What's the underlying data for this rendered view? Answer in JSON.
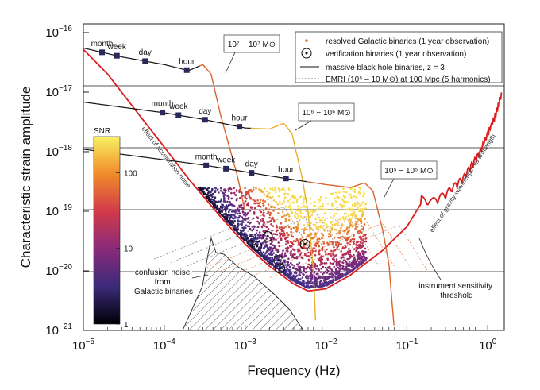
{
  "chart_data": {
    "type": "line",
    "xlabel": "Frequency (Hz)",
    "ylabel": "Characteristic strain amplitude",
    "xscale": "log",
    "yscale": "log",
    "xlim": [
      1e-05,
      1.6
    ],
    "ylim": [
      1e-21,
      1.4e-16
    ],
    "x_ticks": [
      {
        "v": 1e-05,
        "b": "10",
        "e": "−5"
      },
      {
        "v": 0.0001,
        "b": "10",
        "e": "−4"
      },
      {
        "v": 0.001,
        "b": "10",
        "e": "−3"
      },
      {
        "v": 0.01,
        "b": "10",
        "e": "−2"
      },
      {
        "v": 0.1,
        "b": "10",
        "e": "−1"
      },
      {
        "v": 1,
        "b": "10",
        "e": "0"
      }
    ],
    "y_ticks": [
      {
        "v": 1e-16,
        "b": "10",
        "e": "−16"
      },
      {
        "v": 1e-17,
        "b": "10",
        "e": "−17"
      },
      {
        "v": 1e-18,
        "b": "10",
        "e": "−18"
      },
      {
        "v": 1e-19,
        "b": "10",
        "e": "−19"
      },
      {
        "v": 1e-20,
        "b": "10",
        "e": "−20"
      },
      {
        "v": 1e-21,
        "b": "10",
        "e": "−21"
      }
    ],
    "legend": {
      "placement": "top-right",
      "entries": [
        {
          "label": "resolved Galactic binaries (1 year observation)",
          "marker": "dot",
          "color": "#e07020"
        },
        {
          "label": "verification binaries (1 year observation)",
          "marker": "circle-dot",
          "color": "#111111"
        },
        {
          "label": "massive black hole binaries, z = 3",
          "marker": "line",
          "color": "#111111"
        },
        {
          "label": "EMRI (10⁵ – 10 M⊙) at 100 Mpc (5 harmonics)",
          "marker": "dashed",
          "color": "#777777"
        }
      ]
    },
    "colorbar": {
      "label": "SNR",
      "ticks": [
        "100",
        "10",
        "1"
      ],
      "tick_values": [
        100,
        10,
        1
      ],
      "range": [
        1,
        300
      ]
    },
    "sensitivity": {
      "name": "instrument sensitivity threshold",
      "color": "#d81e1e",
      "points": [
        [
          1e-05,
          5.2e-17
        ],
        [
          2e-05,
          2e-17
        ],
        [
          5e-05,
          4e-18
        ],
        [
          0.0001,
          1.2e-18
        ],
        [
          0.0002,
          3.5e-19
        ],
        [
          0.0005,
          8e-20
        ],
        [
          0.001,
          2.8e-20
        ],
        [
          0.002,
          1.2e-20
        ],
        [
          0.004,
          6e-21
        ],
        [
          0.006,
          4.6e-21
        ],
        [
          0.01,
          5e-21
        ],
        [
          0.02,
          8.5e-21
        ],
        [
          0.05,
          2.2e-20
        ],
        [
          0.1,
          5.5e-20
        ],
        [
          0.15,
          1.35e-19
        ],
        [
          0.2,
          1.2e-19
        ],
        [
          0.3,
          1.6e-19
        ],
        [
          0.5,
          3e-19
        ],
        [
          0.8,
          8e-19
        ],
        [
          1.2,
          3e-18
        ],
        [
          1.5,
          8e-18
        ]
      ]
    },
    "mbh_tracks": [
      {
        "label": "10⁷ − 10⁷ M⊙",
        "color": "#111111",
        "points": [
          [
            1e-05,
            5.5e-17
          ],
          [
            3e-05,
            3.9e-17
          ],
          [
            0.0001,
            2.9e-17
          ],
          [
            0.0002,
            2.3e-17
          ],
          [
            0.0003,
            2.9e-17
          ],
          [
            0.00038,
            2e-17
          ],
          [
            0.0005,
            4e-18
          ],
          [
            0.0008,
            4e-19
          ],
          [
            0.001,
            1e-19
          ]
        ],
        "markers": [
          {
            "label": "month",
            "f": 1.7e-05
          },
          {
            "label": "week",
            "f": 2.6e-05
          },
          {
            "label": "day",
            "f": 5.8e-05
          },
          {
            "label": "hour",
            "f": 0.00019
          }
        ]
      },
      {
        "label": "10⁶ − 10⁶ M⊙",
        "color": "#111111",
        "points": [
          [
            1e-05,
            6.8e-18
          ],
          [
            0.0001,
            4.5e-18
          ],
          [
            0.0003,
            3.5e-18
          ],
          [
            0.001,
            2.5e-18
          ],
          [
            0.002,
            2.4e-18
          ],
          [
            0.003,
            3e-18
          ],
          [
            0.0038,
            2e-18
          ],
          [
            0.005,
            4e-19
          ],
          [
            0.006,
            1e-19
          ],
          [
            0.007,
            1e-20
          ],
          [
            0.0075,
            1e-21
          ]
        ],
        "markers": [
          {
            "label": "month",
            "f": 9.5e-05
          },
          {
            "label": "week",
            "f": 0.00015
          },
          {
            "label": "day",
            "f": 0.00032
          },
          {
            "label": "hour",
            "f": 0.00085
          }
        ]
      },
      {
        "label": "10⁵ − 10⁵ M⊙",
        "color": "#111111",
        "points": [
          [
            1e-05,
            1.1e-18
          ],
          [
            0.0003,
            6e-19
          ],
          [
            0.001,
            4.6e-19
          ],
          [
            0.003,
            3.6e-19
          ],
          [
            0.01,
            2.8e-19
          ],
          [
            0.02,
            2.5e-19
          ],
          [
            0.03,
            3e-19
          ],
          [
            0.038,
            2.2e-19
          ],
          [
            0.05,
            5e-20
          ],
          [
            0.06,
            1.3e-20
          ],
          [
            0.07,
            1e-21
          ]
        ],
        "markers": [
          {
            "label": "month",
            "f": 0.00033
          },
          {
            "label": "week",
            "f": 0.00058
          },
          {
            "label": "day",
            "f": 0.0012
          },
          {
            "label": "hour",
            "f": 0.0032
          }
        ]
      }
    ],
    "verification_binaries": [
      [
        0.0012,
        3.2e-20
      ],
      [
        0.0014,
        2.6e-20
      ],
      [
        0.0019,
        3.8e-20
      ],
      [
        0.0026,
        1.5e-20
      ],
      [
        0.0027,
        1.1e-20
      ],
      [
        0.0055,
        2.8e-20
      ]
    ],
    "annotations": [
      {
        "text": "effect of acceleration noise"
      },
      {
        "text": "effect of gravity-wavelength vs armlength"
      },
      {
        "text": "confusion noise from Galactic binaries"
      },
      {
        "text": "instrument sensitivity threshold"
      }
    ]
  }
}
